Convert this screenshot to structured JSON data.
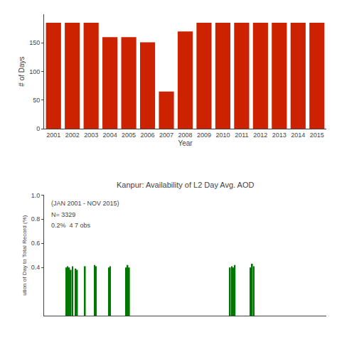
{
  "chart_data": [
    {
      "type": "bar",
      "xlabel": "Year",
      "ylabel": "# of Days",
      "categories": [
        "2001",
        "2002",
        "2003",
        "2004",
        "2005",
        "2006",
        "2007",
        "2008",
        "2009",
        "2010",
        "2011",
        "2012",
        "2013",
        "2014",
        "2015"
      ],
      "values": [
        185,
        185,
        185,
        160,
        160,
        151,
        65,
        170,
        185,
        185,
        185,
        185,
        185,
        185,
        185
      ],
      "color": "#cc2200",
      "ylim": [
        0,
        200
      ],
      "yticks": [
        0,
        50,
        100,
        150
      ],
      "grid": false
    },
    {
      "type": "bar",
      "title": "Kanpur: Availability of L2 Day Avg. AOD",
      "ylabel": "ution of Day to Total Record (%)",
      "x": [
        14,
        15,
        16,
        17,
        18,
        20,
        21,
        26,
        32,
        33,
        41,
        42,
        52,
        53,
        54,
        118,
        119,
        120,
        121,
        131,
        132,
        133
      ],
      "values": [
        0.4,
        0.41,
        0.4,
        0.38,
        0.41,
        0.39,
        0.38,
        0.41,
        0.42,
        0.41,
        0.4,
        0.41,
        0.4,
        0.42,
        0.4,
        0.4,
        0.41,
        0.4,
        0.42,
        0.4,
        0.43,
        0.41
      ],
      "color": "#007700",
      "xlim": [
        0,
        179
      ],
      "xticks": [],
      "ylim": [
        0.0,
        1.0
      ],
      "yticks": [
        0.4,
        0.6,
        0.8,
        {
          "value": 1.0,
          "label": "1.0"
        }
      ],
      "annotations": [
        "(JAN 2001 - NOV 2015)",
        "N= 3329",
        "0.2%  4 7 obs"
      ],
      "tick_labels": "y",
      "grid": false
    }
  ]
}
